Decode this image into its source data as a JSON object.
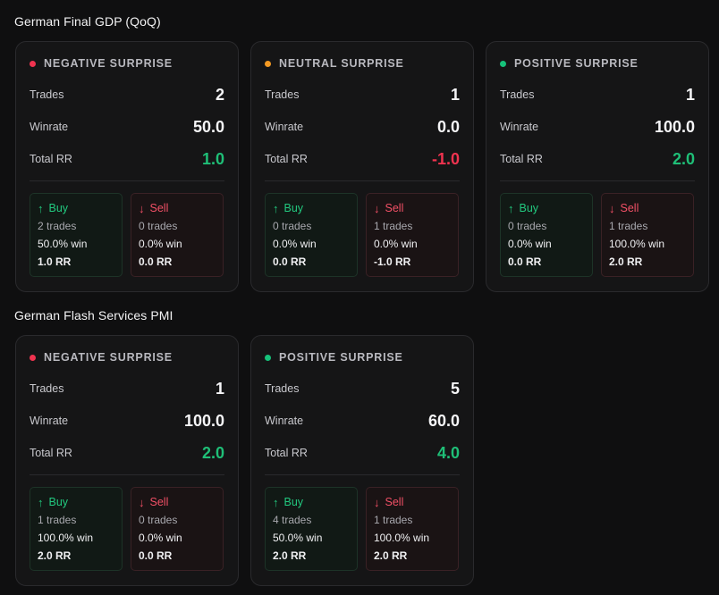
{
  "row_labels": {
    "trades": "Trades",
    "winrate": "Winrate",
    "total_rr": "Total RR"
  },
  "sections": [
    {
      "title": "German Final GDP (QoQ)",
      "cards": [
        {
          "label": "NEGATIVE SURPRISE",
          "dot_color": "#f0334f",
          "trades": "2",
          "winrate": "50.0",
          "total_rr": "1.0",
          "rr_sign": "pos",
          "buy": {
            "label": "Buy",
            "trades": "2 trades",
            "win": "50.0% win",
            "rr": "1.0 RR"
          },
          "sell": {
            "label": "Sell",
            "trades": "0 trades",
            "win": "0.0% win",
            "rr": "0.0 RR"
          }
        },
        {
          "label": "NEUTRAL SURPRISE",
          "dot_color": "#f59a23",
          "trades": "1",
          "winrate": "0.0",
          "total_rr": "-1.0",
          "rr_sign": "neg",
          "buy": {
            "label": "Buy",
            "trades": "0 trades",
            "win": "0.0% win",
            "rr": "0.0 RR"
          },
          "sell": {
            "label": "Sell",
            "trades": "1 trades",
            "win": "0.0% win",
            "rr": "-1.0 RR"
          }
        },
        {
          "label": "POSITIVE SURPRISE",
          "dot_color": "#16c27a",
          "trades": "1",
          "winrate": "100.0",
          "total_rr": "2.0",
          "rr_sign": "pos",
          "buy": {
            "label": "Buy",
            "trades": "0 trades",
            "win": "0.0% win",
            "rr": "0.0 RR"
          },
          "sell": {
            "label": "Sell",
            "trades": "1 trades",
            "win": "100.0% win",
            "rr": "2.0 RR"
          }
        }
      ]
    },
    {
      "title": "German Flash Services PMI",
      "cards": [
        {
          "label": "NEGATIVE SURPRISE",
          "dot_color": "#f0334f",
          "trades": "1",
          "winrate": "100.0",
          "total_rr": "2.0",
          "rr_sign": "pos",
          "buy": {
            "label": "Buy",
            "trades": "1 trades",
            "win": "100.0% win",
            "rr": "2.0 RR"
          },
          "sell": {
            "label": "Sell",
            "trades": "0 trades",
            "win": "0.0% win",
            "rr": "0.0 RR"
          }
        },
        {
          "label": "POSITIVE SURPRISE",
          "dot_color": "#16c27a",
          "trades": "5",
          "winrate": "60.0",
          "total_rr": "4.0",
          "rr_sign": "pos",
          "buy": {
            "label": "Buy",
            "trades": "4 trades",
            "win": "50.0% win",
            "rr": "2.0 RR"
          },
          "sell": {
            "label": "Sell",
            "trades": "1 trades",
            "win": "100.0% win",
            "rr": "2.0 RR"
          }
        }
      ]
    }
  ],
  "icons": {
    "buy": "arrow-up-icon",
    "sell": "arrow-down-icon",
    "dot": "status-dot-icon"
  }
}
